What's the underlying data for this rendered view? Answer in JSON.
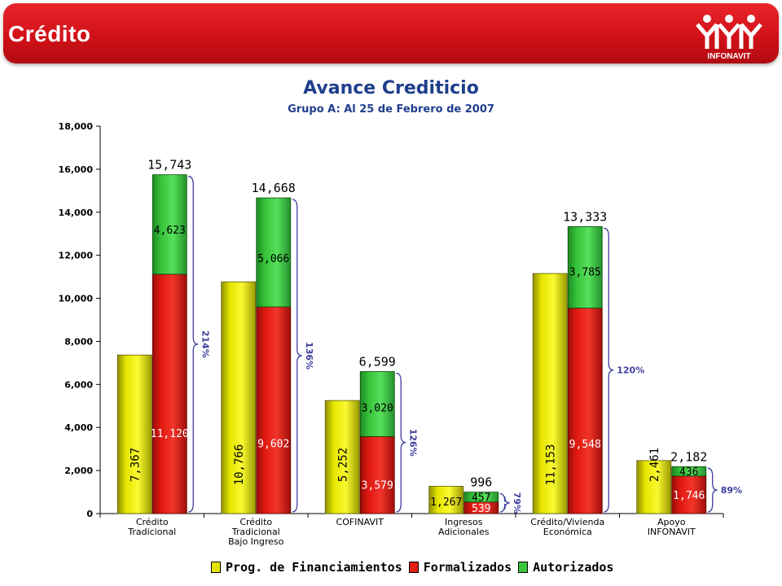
{
  "header": {
    "title": "Crédito",
    "logo_text": "INFONAVIT"
  },
  "colors": {
    "banner": "#d21118",
    "title": "#1f3e8c",
    "prog": "#e4e400",
    "formalizados": "#e41e14",
    "autorizados": "#39c83c",
    "bracket": "#3d3d9e"
  },
  "chart_data": {
    "type": "bar",
    "title": "Avance Crediticio",
    "subtitle": "Grupo A: Al 25 de Febrero de 2007",
    "ylim": [
      0,
      18000
    ],
    "yticks": [
      "0",
      "2,000",
      "4,000",
      "6,000",
      "8,000",
      "10,000",
      "12,000",
      "14,000",
      "16,000",
      "18,000"
    ],
    "categories": [
      [
        "Crédito",
        "Tradicional"
      ],
      [
        "Crédito",
        "Tradicional",
        "Bajo Ingreso"
      ],
      [
        "COFINAVIT"
      ],
      [
        "Ingresos",
        "Adicionales"
      ],
      [
        "Crédito/Vivienda",
        "Económica"
      ],
      [
        "Apoyo",
        "INFONAVIT"
      ]
    ],
    "series": [
      {
        "name": "Prog. de Financiamientos",
        "values": [
          7367,
          10766,
          5252,
          1267,
          11153,
          2461
        ],
        "labels": [
          "7,367",
          "10,766",
          "5,252",
          "1,267",
          "11,153",
          "2,461"
        ]
      },
      {
        "name": "Formalizados",
        "values": [
          11120,
          9602,
          3579,
          539,
          9548,
          1746
        ],
        "labels": [
          "11,120",
          "9,602",
          "3,579",
          "539",
          "9,548",
          "1,746"
        ]
      },
      {
        "name": "Autorizados",
        "values": [
          4623,
          5066,
          3020,
          457,
          3785,
          436
        ],
        "labels": [
          "4,623",
          "5,066",
          "3,020",
          "457",
          "3,785",
          "436"
        ]
      }
    ],
    "totals": [
      "15,743",
      "14,668",
      "6,599",
      "996",
      "13,333",
      "2,182"
    ],
    "percentages": [
      "214%",
      "136%",
      "126%",
      "79%",
      "120%",
      "89%"
    ],
    "legend_position": "bottom",
    "grid": false
  }
}
